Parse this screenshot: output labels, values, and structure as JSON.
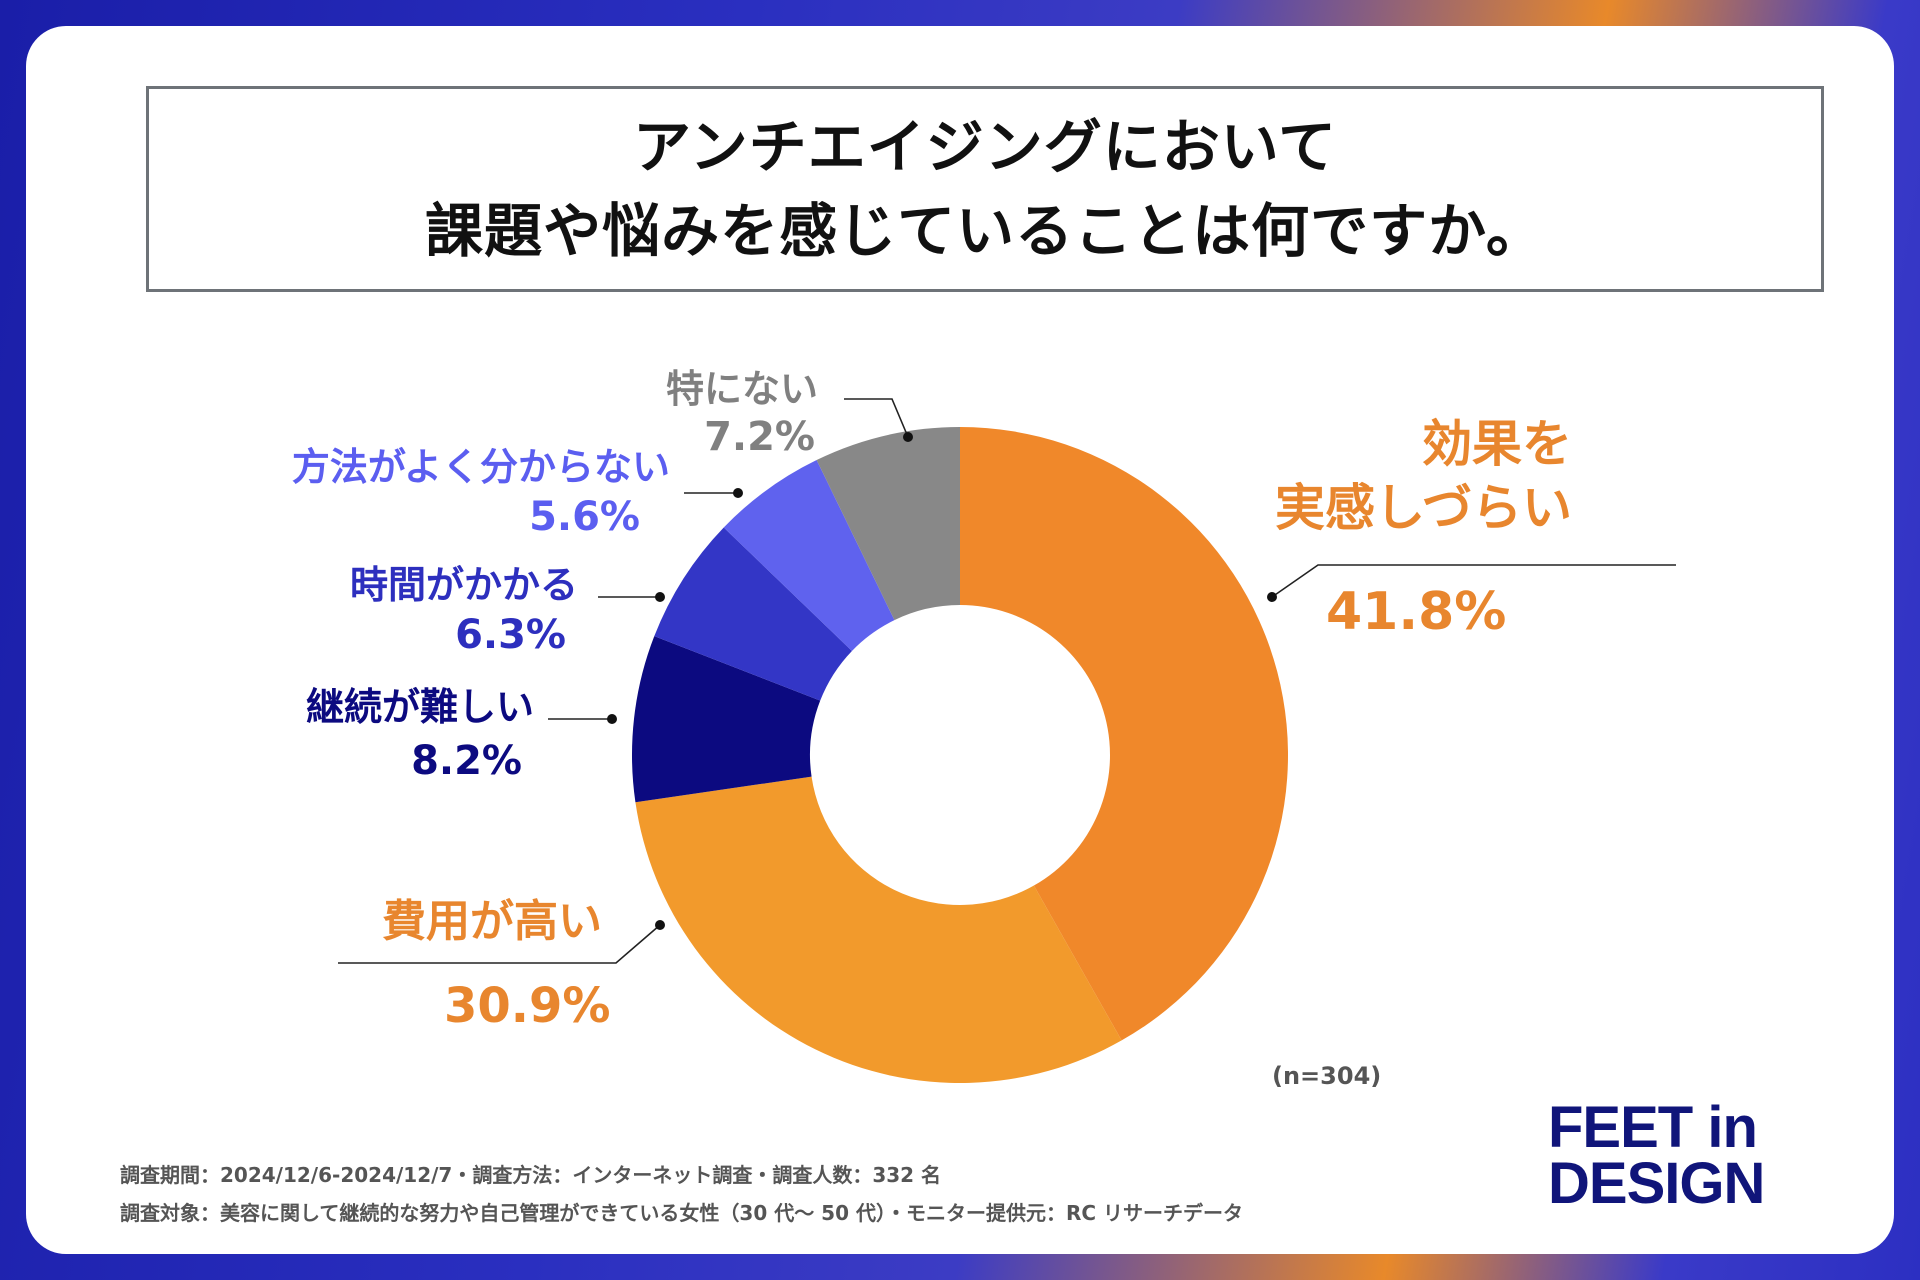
{
  "title": {
    "line1": "アンチエイジングにおいて",
    "line2": "課題や悩みを感じていることは何ですか。"
  },
  "chart_data": {
    "type": "pie",
    "variant": "donut",
    "title": "アンチエイジングにおいて課題や悩みを感じていることは何ですか。",
    "slices": [
      {
        "label": "効果を実感しづらい",
        "label_lines": [
          "効果を",
          "実感しづらい"
        ],
        "value": 41.8,
        "value_text": "41.8%",
        "color": "#f0882a"
      },
      {
        "label": "費用が高い",
        "label_lines": [
          "費用が高い"
        ],
        "value": 30.9,
        "value_text": "30.9%",
        "color": "#f29a2c"
      },
      {
        "label": "継続が難しい",
        "label_lines": [
          "継続が難しい"
        ],
        "value": 8.2,
        "value_text": "8.2%",
        "color": "#0c0a80"
      },
      {
        "label": "時間がかかる",
        "label_lines": [
          "時間がかかる"
        ],
        "value": 6.3,
        "value_text": "6.3%",
        "color": "#3336c6"
      },
      {
        "label": "方法がよく分からない",
        "label_lines": [
          "方法がよく分からない"
        ],
        "value": 5.6,
        "value_text": "5.6%",
        "color": "#5f62ee"
      },
      {
        "label": "特にない",
        "label_lines": [
          "特にない"
        ],
        "value": 7.2,
        "value_text": "7.2%",
        "color": "#888888"
      }
    ],
    "label_colors": [
      "#e8862e",
      "#e8862e",
      "#0c0a80",
      "#2d2fbe",
      "#5b5ef0",
      "#808080"
    ],
    "n_label": "(n=304)"
  },
  "footer": {
    "line1": "調査期間：2024/12/6-2024/12/7・調査方法：インターネット調査・調査人数：332 名",
    "line2": "調査対象：美容に関して継続的な努力や自己管理ができている女性（30 代～ 50 代）・モニター提供元：RC リサーチデータ"
  },
  "logo": {
    "line1": "FEET in",
    "line2": "DESIGN"
  }
}
